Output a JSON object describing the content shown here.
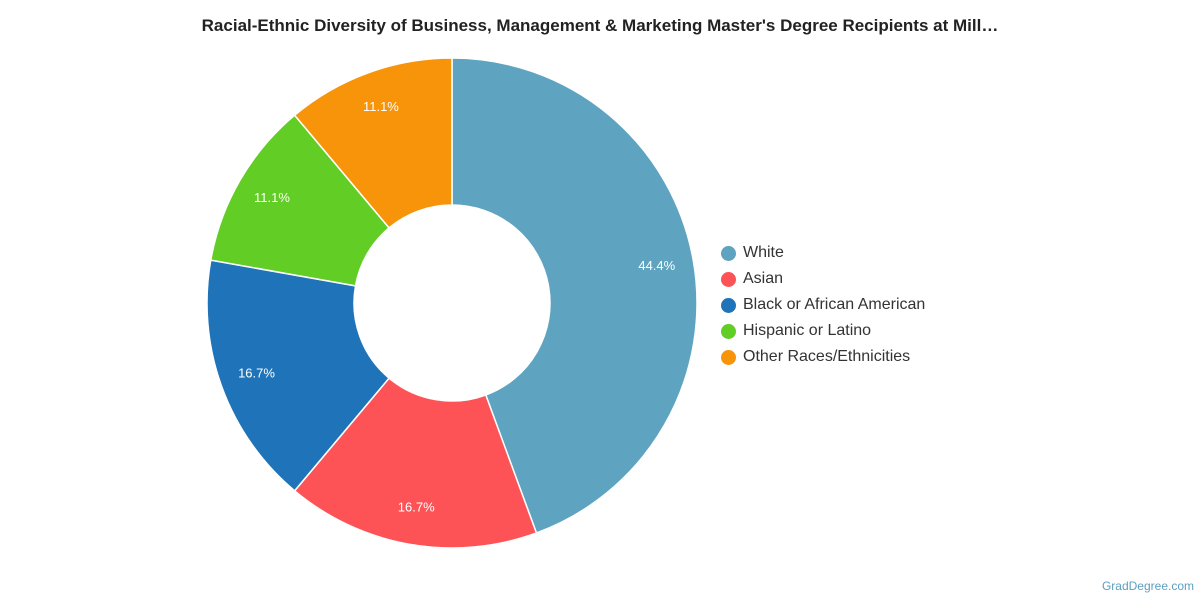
{
  "chart_data": {
    "type": "pie",
    "variant": "donut",
    "title": "Racial-Ethnic Diversity of Business, Management & Marketing Master's Degree Recipients at Mill…",
    "slices": [
      {
        "label": "White",
        "value": 44.4,
        "display": "44.4%",
        "color": "#5ea3bf"
      },
      {
        "label": "Asian",
        "value": 16.7,
        "display": "16.7%",
        "color": "#fd5356"
      },
      {
        "label": "Black or African American",
        "value": 16.7,
        "display": "16.7%",
        "color": "#1f73b9"
      },
      {
        "label": "Hispanic or Latino",
        "value": 11.1,
        "display": "11.1%",
        "color": "#62cd25"
      },
      {
        "label": "Other Races/Ethnicities",
        "value": 11.1,
        "display": "11.1%",
        "color": "#f7940a"
      }
    ],
    "legend_position": "right"
  },
  "credit": "GradDegree.com"
}
